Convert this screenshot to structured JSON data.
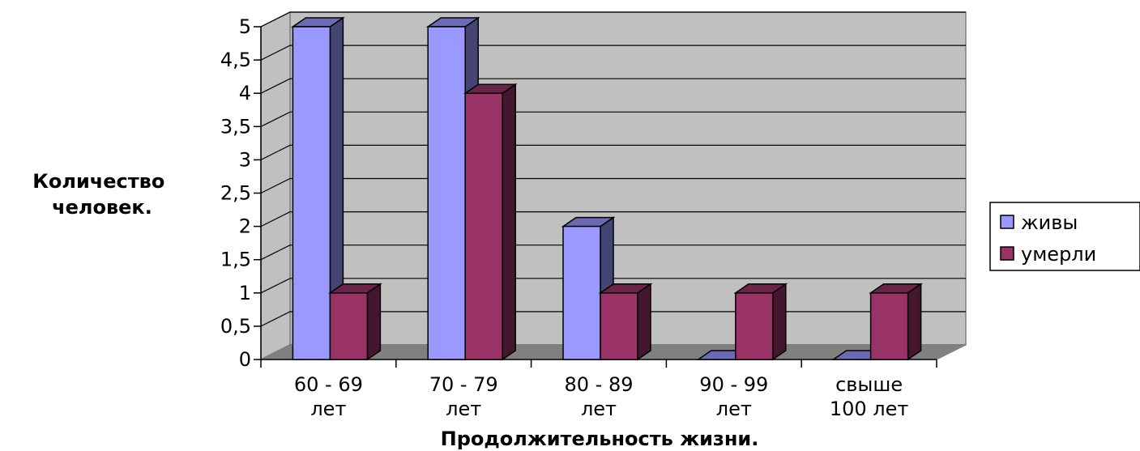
{
  "chart_data": {
    "type": "bar",
    "categories": [
      [
        "60 - 69",
        "лет"
      ],
      [
        "70 - 79",
        "лет"
      ],
      [
        "80 - 89",
        "лет"
      ],
      [
        "90 - 99",
        "лет"
      ],
      [
        "свыше",
        "100 лет"
      ]
    ],
    "series": [
      {
        "name": "живы",
        "values": [
          5,
          5,
          2,
          0,
          0
        ],
        "color": "#9999ff"
      },
      {
        "name": "умерли",
        "values": [
          1,
          4,
          1,
          1,
          1
        ],
        "color": "#993366"
      }
    ],
    "xlabel": "Продолжительность жизни.",
    "ylabel": [
      "Количество",
      "человек."
    ],
    "ylim": [
      0,
      5
    ],
    "yticks": [
      "0",
      "0,5",
      "1",
      "1,5",
      "2",
      "2,5",
      "3",
      "3,5",
      "4",
      "4,5",
      "5"
    ],
    "grid": true,
    "legend": "right",
    "style": "3d-column"
  }
}
